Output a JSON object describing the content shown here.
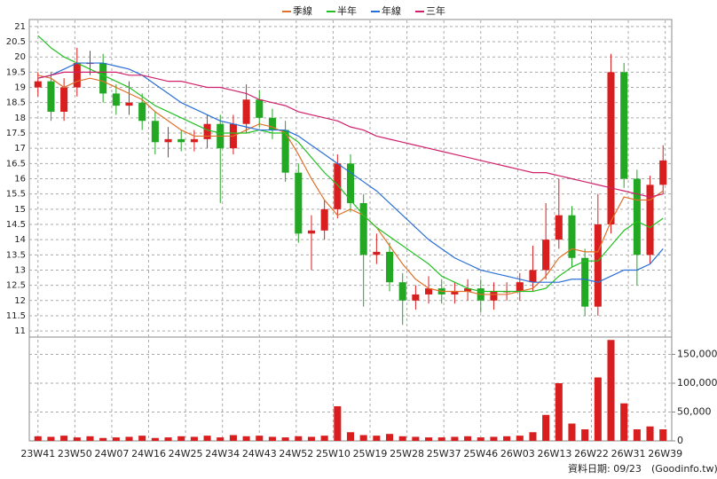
{
  "chart_data": {
    "type": "candlestick",
    "legend": [
      {
        "name": "季線",
        "color": "#e0702a"
      },
      {
        "name": "半年",
        "color": "#22c022"
      },
      {
        "name": "年線",
        "color": "#2a6fd6"
      },
      {
        "name": "三年",
        "color": "#d0206a"
      }
    ],
    "x": [
      0,
      3,
      6,
      9,
      12,
      15,
      18,
      21,
      24,
      27,
      30,
      33,
      36,
      39,
      42,
      45,
      48,
      51,
      54,
      57,
      60,
      63,
      66,
      69,
      72,
      75,
      78,
      81,
      84,
      87,
      90,
      93,
      96,
      99,
      102,
      105,
      108,
      111,
      114,
      117,
      120,
      123,
      126,
      129,
      132,
      135,
      138,
      141,
      144
    ],
    "xlim": [
      -2,
      146
    ],
    "xticks": [
      {
        "value": 0,
        "label": "23W41"
      },
      {
        "value": 8.5,
        "label": "23W50"
      },
      {
        "value": 17,
        "label": "24W07"
      },
      {
        "value": 25.5,
        "label": "24W16"
      },
      {
        "value": 34,
        "label": "24W25"
      },
      {
        "value": 42.5,
        "label": "24W34"
      },
      {
        "value": 51,
        "label": "24W43"
      },
      {
        "value": 59.5,
        "label": "24W52"
      },
      {
        "value": 68,
        "label": "25W10"
      },
      {
        "value": 76.5,
        "label": "25W19"
      },
      {
        "value": 85,
        "label": "25W28"
      },
      {
        "value": 93.5,
        "label": "25W37"
      },
      {
        "value": 102,
        "label": "25W46"
      },
      {
        "value": 110.5,
        "label": "26W03"
      },
      {
        "value": 119,
        "label": "26W13"
      },
      {
        "value": 127.5,
        "label": "26W22"
      },
      {
        "value": 136,
        "label": "26W31"
      },
      {
        "value": 144.5,
        "label": "26W39"
      }
    ],
    "open": [
      19.0,
      19.2,
      18.2,
      19.0,
      19.8,
      19.8,
      18.8,
      18.4,
      18.5,
      17.9,
      17.2,
      17.3,
      17.2,
      17.3,
      17.8,
      17.0,
      17.8,
      18.6,
      18.0,
      17.6,
      16.2,
      14.2,
      14.3,
      15.0,
      16.5,
      15.2,
      13.5,
      13.6,
      12.6,
      12.0,
      12.2,
      12.4,
      12.2,
      12.3,
      12.4,
      12.0,
      12.3,
      12.3,
      12.6,
      13.0,
      14.0,
      14.8,
      13.4,
      11.8,
      14.5,
      19.5,
      16.0,
      13.5,
      15.8
    ],
    "high": [
      19.5,
      19.5,
      19.3,
      20.3,
      20.2,
      20.1,
      19.1,
      19.2,
      18.8,
      18.2,
      17.7,
      17.6,
      17.6,
      18.1,
      18.1,
      18.1,
      19.1,
      18.9,
      18.3,
      17.9,
      16.5,
      14.8,
      15.3,
      16.8,
      16.8,
      15.5,
      14.2,
      13.9,
      12.9,
      12.5,
      12.8,
      12.7,
      12.6,
      12.7,
      12.7,
      12.6,
      12.6,
      12.9,
      13.8,
      15.2,
      16.0,
      15.1,
      13.7,
      15.5,
      20.1,
      19.8,
      16.3,
      16.1,
      17.1
    ],
    "low": [
      18.7,
      17.9,
      17.9,
      18.7,
      19.4,
      18.5,
      18.1,
      18.1,
      17.6,
      16.8,
      16.7,
      16.9,
      16.9,
      17.0,
      15.2,
      16.8,
      17.5,
      17.7,
      17.3,
      15.9,
      13.9,
      13.0,
      14.0,
      14.7,
      14.9,
      11.8,
      13.2,
      12.3,
      11.2,
      11.7,
      11.9,
      11.9,
      11.9,
      12.0,
      11.6,
      11.7,
      12.0,
      12.0,
      12.3,
      12.7,
      13.7,
      13.1,
      11.5,
      11.5,
      14.2,
      15.7,
      12.5,
      13.2,
      15.5
    ],
    "close": [
      19.2,
      18.2,
      19.0,
      19.8,
      19.8,
      18.8,
      18.4,
      18.5,
      17.9,
      17.2,
      17.3,
      17.2,
      17.3,
      17.8,
      17.0,
      17.8,
      18.6,
      18.0,
      17.6,
      16.2,
      14.2,
      14.3,
      15.0,
      16.5,
      15.2,
      13.5,
      13.6,
      12.6,
      12.0,
      12.2,
      12.4,
      12.2,
      12.3,
      12.4,
      12.0,
      12.3,
      12.3,
      12.6,
      13.0,
      14.0,
      14.8,
      13.4,
      11.8,
      14.5,
      19.5,
      16.0,
      13.5,
      15.8,
      16.6
    ],
    "up_color": "#d81e1e",
    "down_color": "#22a822",
    "series": [
      {
        "name": "季線",
        "color": "#e0702a",
        "values": [
          19.4,
          19.3,
          19.0,
          19.2,
          19.3,
          19.2,
          19.0,
          18.8,
          18.6,
          18.2,
          17.9,
          17.6,
          17.4,
          17.4,
          17.4,
          17.4,
          17.6,
          17.8,
          17.7,
          17.5,
          16.8,
          16.0,
          15.3,
          14.8,
          15.0,
          14.8,
          14.4,
          13.8,
          13.2,
          12.7,
          12.4,
          12.3,
          12.3,
          12.3,
          12.2,
          12.2,
          12.2,
          12.3,
          12.4,
          12.8,
          13.4,
          13.7,
          13.6,
          13.6,
          14.6,
          15.4,
          15.3,
          15.3,
          15.6
        ]
      },
      {
        "name": "半年",
        "color": "#22c022",
        "values": [
          20.7,
          20.3,
          20.0,
          19.8,
          19.6,
          19.4,
          19.2,
          19.0,
          18.7,
          18.4,
          18.2,
          18.0,
          17.8,
          17.6,
          17.5,
          17.5,
          17.5,
          17.6,
          17.5,
          17.5,
          17.2,
          16.7,
          16.2,
          15.8,
          15.3,
          14.8,
          14.4,
          14.1,
          13.8,
          13.5,
          13.2,
          12.8,
          12.6,
          12.4,
          12.3,
          12.3,
          12.3,
          12.3,
          12.3,
          12.4,
          12.8,
          13.1,
          13.3,
          13.3,
          13.8,
          14.3,
          14.6,
          14.4,
          14.7
        ]
      },
      {
        "name": "年線",
        "color": "#2a6fd6",
        "values": [
          19.3,
          19.4,
          19.6,
          19.8,
          19.8,
          19.8,
          19.7,
          19.6,
          19.4,
          19.1,
          18.8,
          18.5,
          18.3,
          18.1,
          17.9,
          17.8,
          17.7,
          17.6,
          17.6,
          17.6,
          17.4,
          17.1,
          16.8,
          16.5,
          16.2,
          15.9,
          15.6,
          15.2,
          14.8,
          14.4,
          14.0,
          13.7,
          13.4,
          13.2,
          13.0,
          12.9,
          12.8,
          12.7,
          12.6,
          12.6,
          12.6,
          12.7,
          12.7,
          12.6,
          12.8,
          13.0,
          13.0,
          13.2,
          13.7
        ]
      },
      {
        "name": "三年",
        "color": "#d0206a",
        "values": [
          19.3,
          19.4,
          19.5,
          19.5,
          19.5,
          19.5,
          19.5,
          19.4,
          19.4,
          19.3,
          19.2,
          19.2,
          19.1,
          19.0,
          19.0,
          18.9,
          18.8,
          18.6,
          18.5,
          18.4,
          18.2,
          18.1,
          18.0,
          17.9,
          17.7,
          17.6,
          17.4,
          17.3,
          17.2,
          17.1,
          17.0,
          16.9,
          16.8,
          16.7,
          16.6,
          16.5,
          16.4,
          16.3,
          16.2,
          16.2,
          16.1,
          16.0,
          15.9,
          15.8,
          15.7,
          15.6,
          15.5,
          15.4,
          15.5
        ]
      }
    ],
    "ylim": [
      10.8,
      21.2
    ],
    "yticks": [
      11,
      11.5,
      12,
      12.5,
      13,
      13.5,
      14,
      14.5,
      15,
      15.5,
      16,
      16.5,
      17,
      17.5,
      18,
      18.5,
      19,
      19.5,
      20,
      20.5,
      21
    ],
    "volume": [
      8000,
      7000,
      9000,
      6000,
      8000,
      5000,
      6000,
      7000,
      9000,
      5000,
      6000,
      8000,
      7000,
      9000,
      6000,
      10000,
      8000,
      9000,
      7000,
      6000,
      8000,
      7000,
      9000,
      60000,
      15000,
      10000,
      9000,
      12000,
      8000,
      7000,
      6000,
      6000,
      7000,
      8000,
      6000,
      7000,
      8000,
      9000,
      15000,
      45000,
      100000,
      30000,
      20000,
      110000,
      175000,
      65000,
      20000,
      25000,
      20000
    ],
    "volume_color": "#d81e1e",
    "y2lim": [
      0,
      180000
    ],
    "y2ticks": [
      {
        "value": 0,
        "label": "0"
      },
      {
        "value": 50000,
        "label": "50,000"
      },
      {
        "value": 100000,
        "label": "100,000"
      },
      {
        "value": 150000,
        "label": "150,000"
      }
    ],
    "grid": true,
    "footer": "資料日期: 09/23",
    "source": "(Goodinfo.tw)"
  }
}
